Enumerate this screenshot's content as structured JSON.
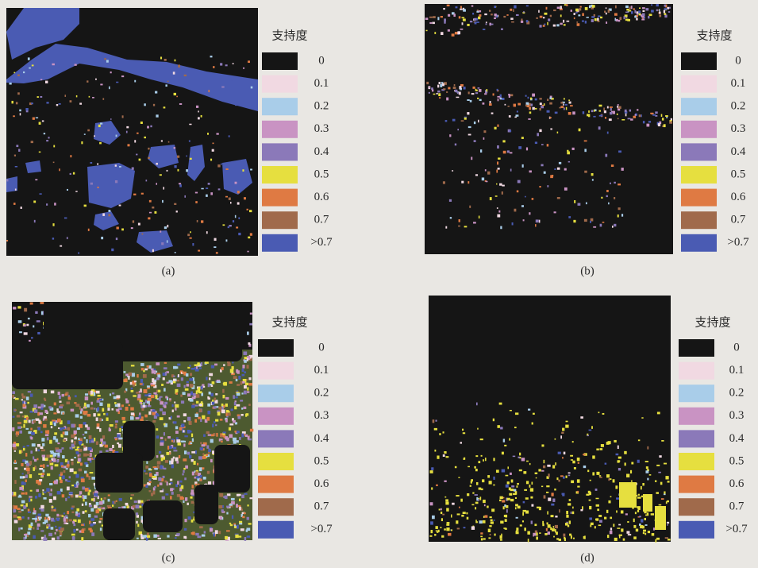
{
  "panels": [
    {
      "caption": "(a)",
      "legend": {
        "title": "支持度",
        "items": [
          {
            "label": "0",
            "color": "#151515"
          },
          {
            "label": "0.1",
            "color": "#f1d9e2"
          },
          {
            "label": "0.2",
            "color": "#a9cde9"
          },
          {
            "label": "0.3",
            "color": "#c993c3"
          },
          {
            "label": "0.4",
            "color": "#8b79b9"
          },
          {
            "label": "0.5",
            "color": "#e6df3f"
          },
          {
            "label": "0.6",
            "color": "#df7a43"
          },
          {
            "label": "0.7",
            "color": "#a06a4b"
          },
          {
            "label": ">0.7",
            "color": "#4a5bb3"
          }
        ]
      }
    },
    {
      "caption": "(b)",
      "legend": {
        "title": "支持度",
        "items": [
          {
            "label": "0",
            "color": "#151515"
          },
          {
            "label": "0.1",
            "color": "#f1d9e2"
          },
          {
            "label": "0.2",
            "color": "#a9cde9"
          },
          {
            "label": "0.3",
            "color": "#c993c3"
          },
          {
            "label": "0.4",
            "color": "#8b79b9"
          },
          {
            "label": "0.5",
            "color": "#e6df3f"
          },
          {
            "label": "0.6",
            "color": "#df7a43"
          },
          {
            "label": "0.7",
            "color": "#a06a4b"
          },
          {
            "label": ">0.7",
            "color": "#4a5bb3"
          }
        ]
      }
    },
    {
      "caption": "(c)",
      "legend": {
        "title": "支持度",
        "items": [
          {
            "label": "0",
            "color": "#151515"
          },
          {
            "label": "0.1",
            "color": "#f1d9e2"
          },
          {
            "label": "0.2",
            "color": "#a9cde9"
          },
          {
            "label": "0.3",
            "color": "#c993c3"
          },
          {
            "label": "0.4",
            "color": "#8b79b9"
          },
          {
            "label": "0.5",
            "color": "#e6df3f"
          },
          {
            "label": "0.6",
            "color": "#df7a43"
          },
          {
            "label": "0.7",
            "color": "#a06a4b"
          },
          {
            "label": ">0.7",
            "color": "#4a5bb3"
          }
        ]
      }
    },
    {
      "caption": "(d)",
      "legend": {
        "title": "支持度",
        "items": [
          {
            "label": "0",
            "color": "#151515"
          },
          {
            "label": "0.1",
            "color": "#f1d9e2"
          },
          {
            "label": "0.2",
            "color": "#a9cde9"
          },
          {
            "label": "0.3",
            "color": "#c993c3"
          },
          {
            "label": "0.4",
            "color": "#8b79b9"
          },
          {
            "label": "0.5",
            "color": "#e6df3f"
          },
          {
            "label": "0.6",
            "color": "#df7a43"
          },
          {
            "label": "0.7",
            "color": "#a06a4b"
          },
          {
            "label": ">0.7",
            "color": "#4a5bb3"
          }
        ]
      }
    }
  ]
}
